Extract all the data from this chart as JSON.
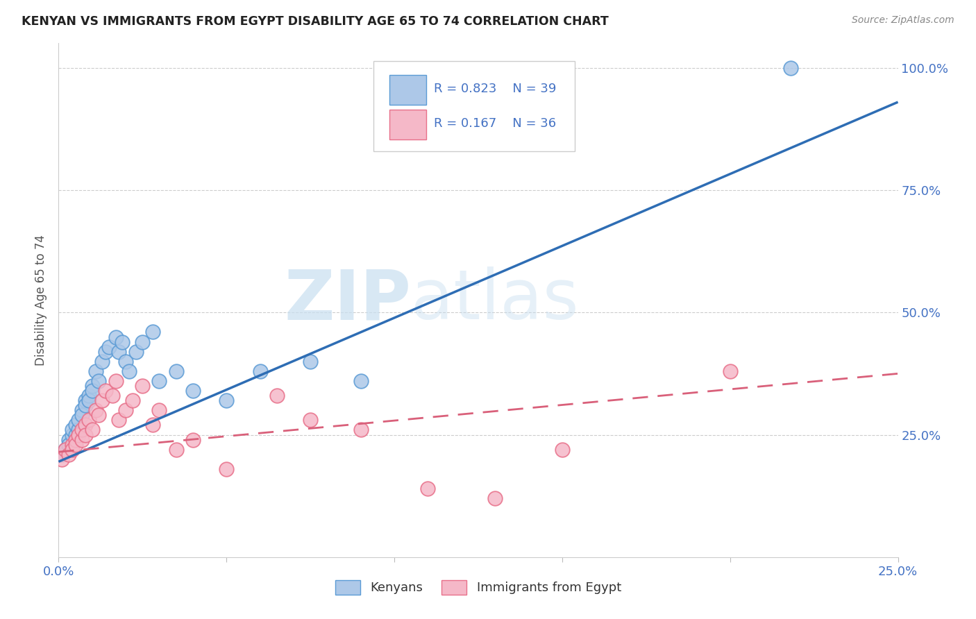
{
  "title": "KENYAN VS IMMIGRANTS FROM EGYPT DISABILITY AGE 65 TO 74 CORRELATION CHART",
  "source": "Source: ZipAtlas.com",
  "ylabel": "Disability Age 65 to 74",
  "xmin": 0.0,
  "xmax": 0.25,
  "ymin": 0.0,
  "ymax": 1.05,
  "yticks": [
    0.25,
    0.5,
    0.75,
    1.0
  ],
  "ytick_labels": [
    "25.0%",
    "50.0%",
    "75.0%",
    "100.0%"
  ],
  "kenyan_color": "#adc8e8",
  "kenyan_edge": "#5b9bd5",
  "egypt_color": "#f5b8c8",
  "egypt_edge": "#e8708a",
  "kenyan_R": 0.823,
  "kenyan_N": 39,
  "egypt_R": 0.167,
  "egypt_N": 36,
  "kenyan_line_color": "#2e6db4",
  "egypt_line_color": "#d9607a",
  "legend_text_color": "#4472c4",
  "watermark_zip": "ZIP",
  "watermark_atlas": "atlas",
  "kenyan_x": [
    0.001,
    0.002,
    0.003,
    0.003,
    0.004,
    0.004,
    0.005,
    0.005,
    0.006,
    0.006,
    0.007,
    0.007,
    0.008,
    0.008,
    0.009,
    0.009,
    0.01,
    0.01,
    0.011,
    0.012,
    0.013,
    0.014,
    0.015,
    0.017,
    0.018,
    0.019,
    0.02,
    0.021,
    0.023,
    0.025,
    0.028,
    0.03,
    0.035,
    0.04,
    0.05,
    0.06,
    0.075,
    0.09,
    0.218
  ],
  "kenyan_y": [
    0.21,
    0.22,
    0.24,
    0.23,
    0.25,
    0.26,
    0.25,
    0.27,
    0.26,
    0.28,
    0.3,
    0.29,
    0.32,
    0.31,
    0.33,
    0.32,
    0.35,
    0.34,
    0.38,
    0.36,
    0.4,
    0.42,
    0.43,
    0.45,
    0.42,
    0.44,
    0.4,
    0.38,
    0.42,
    0.44,
    0.46,
    0.36,
    0.38,
    0.34,
    0.32,
    0.38,
    0.4,
    0.36,
    1.0
  ],
  "egypt_x": [
    0.001,
    0.002,
    0.003,
    0.004,
    0.004,
    0.005,
    0.005,
    0.006,
    0.007,
    0.007,
    0.008,
    0.008,
    0.009,
    0.01,
    0.011,
    0.012,
    0.013,
    0.014,
    0.016,
    0.017,
    0.018,
    0.02,
    0.022,
    0.025,
    0.028,
    0.03,
    0.035,
    0.04,
    0.05,
    0.065,
    0.075,
    0.09,
    0.11,
    0.13,
    0.15,
    0.2
  ],
  "egypt_y": [
    0.2,
    0.22,
    0.21,
    0.23,
    0.22,
    0.24,
    0.23,
    0.25,
    0.24,
    0.26,
    0.27,
    0.25,
    0.28,
    0.26,
    0.3,
    0.29,
    0.32,
    0.34,
    0.33,
    0.36,
    0.28,
    0.3,
    0.32,
    0.35,
    0.27,
    0.3,
    0.22,
    0.24,
    0.18,
    0.33,
    0.28,
    0.26,
    0.14,
    0.12,
    0.22,
    0.38
  ],
  "kenyan_line_x0": 0.0,
  "kenyan_line_y0": 0.195,
  "kenyan_line_x1": 0.25,
  "kenyan_line_y1": 0.93,
  "egypt_line_x0": 0.0,
  "egypt_line_y0": 0.215,
  "egypt_line_x1": 0.25,
  "egypt_line_y1": 0.375
}
